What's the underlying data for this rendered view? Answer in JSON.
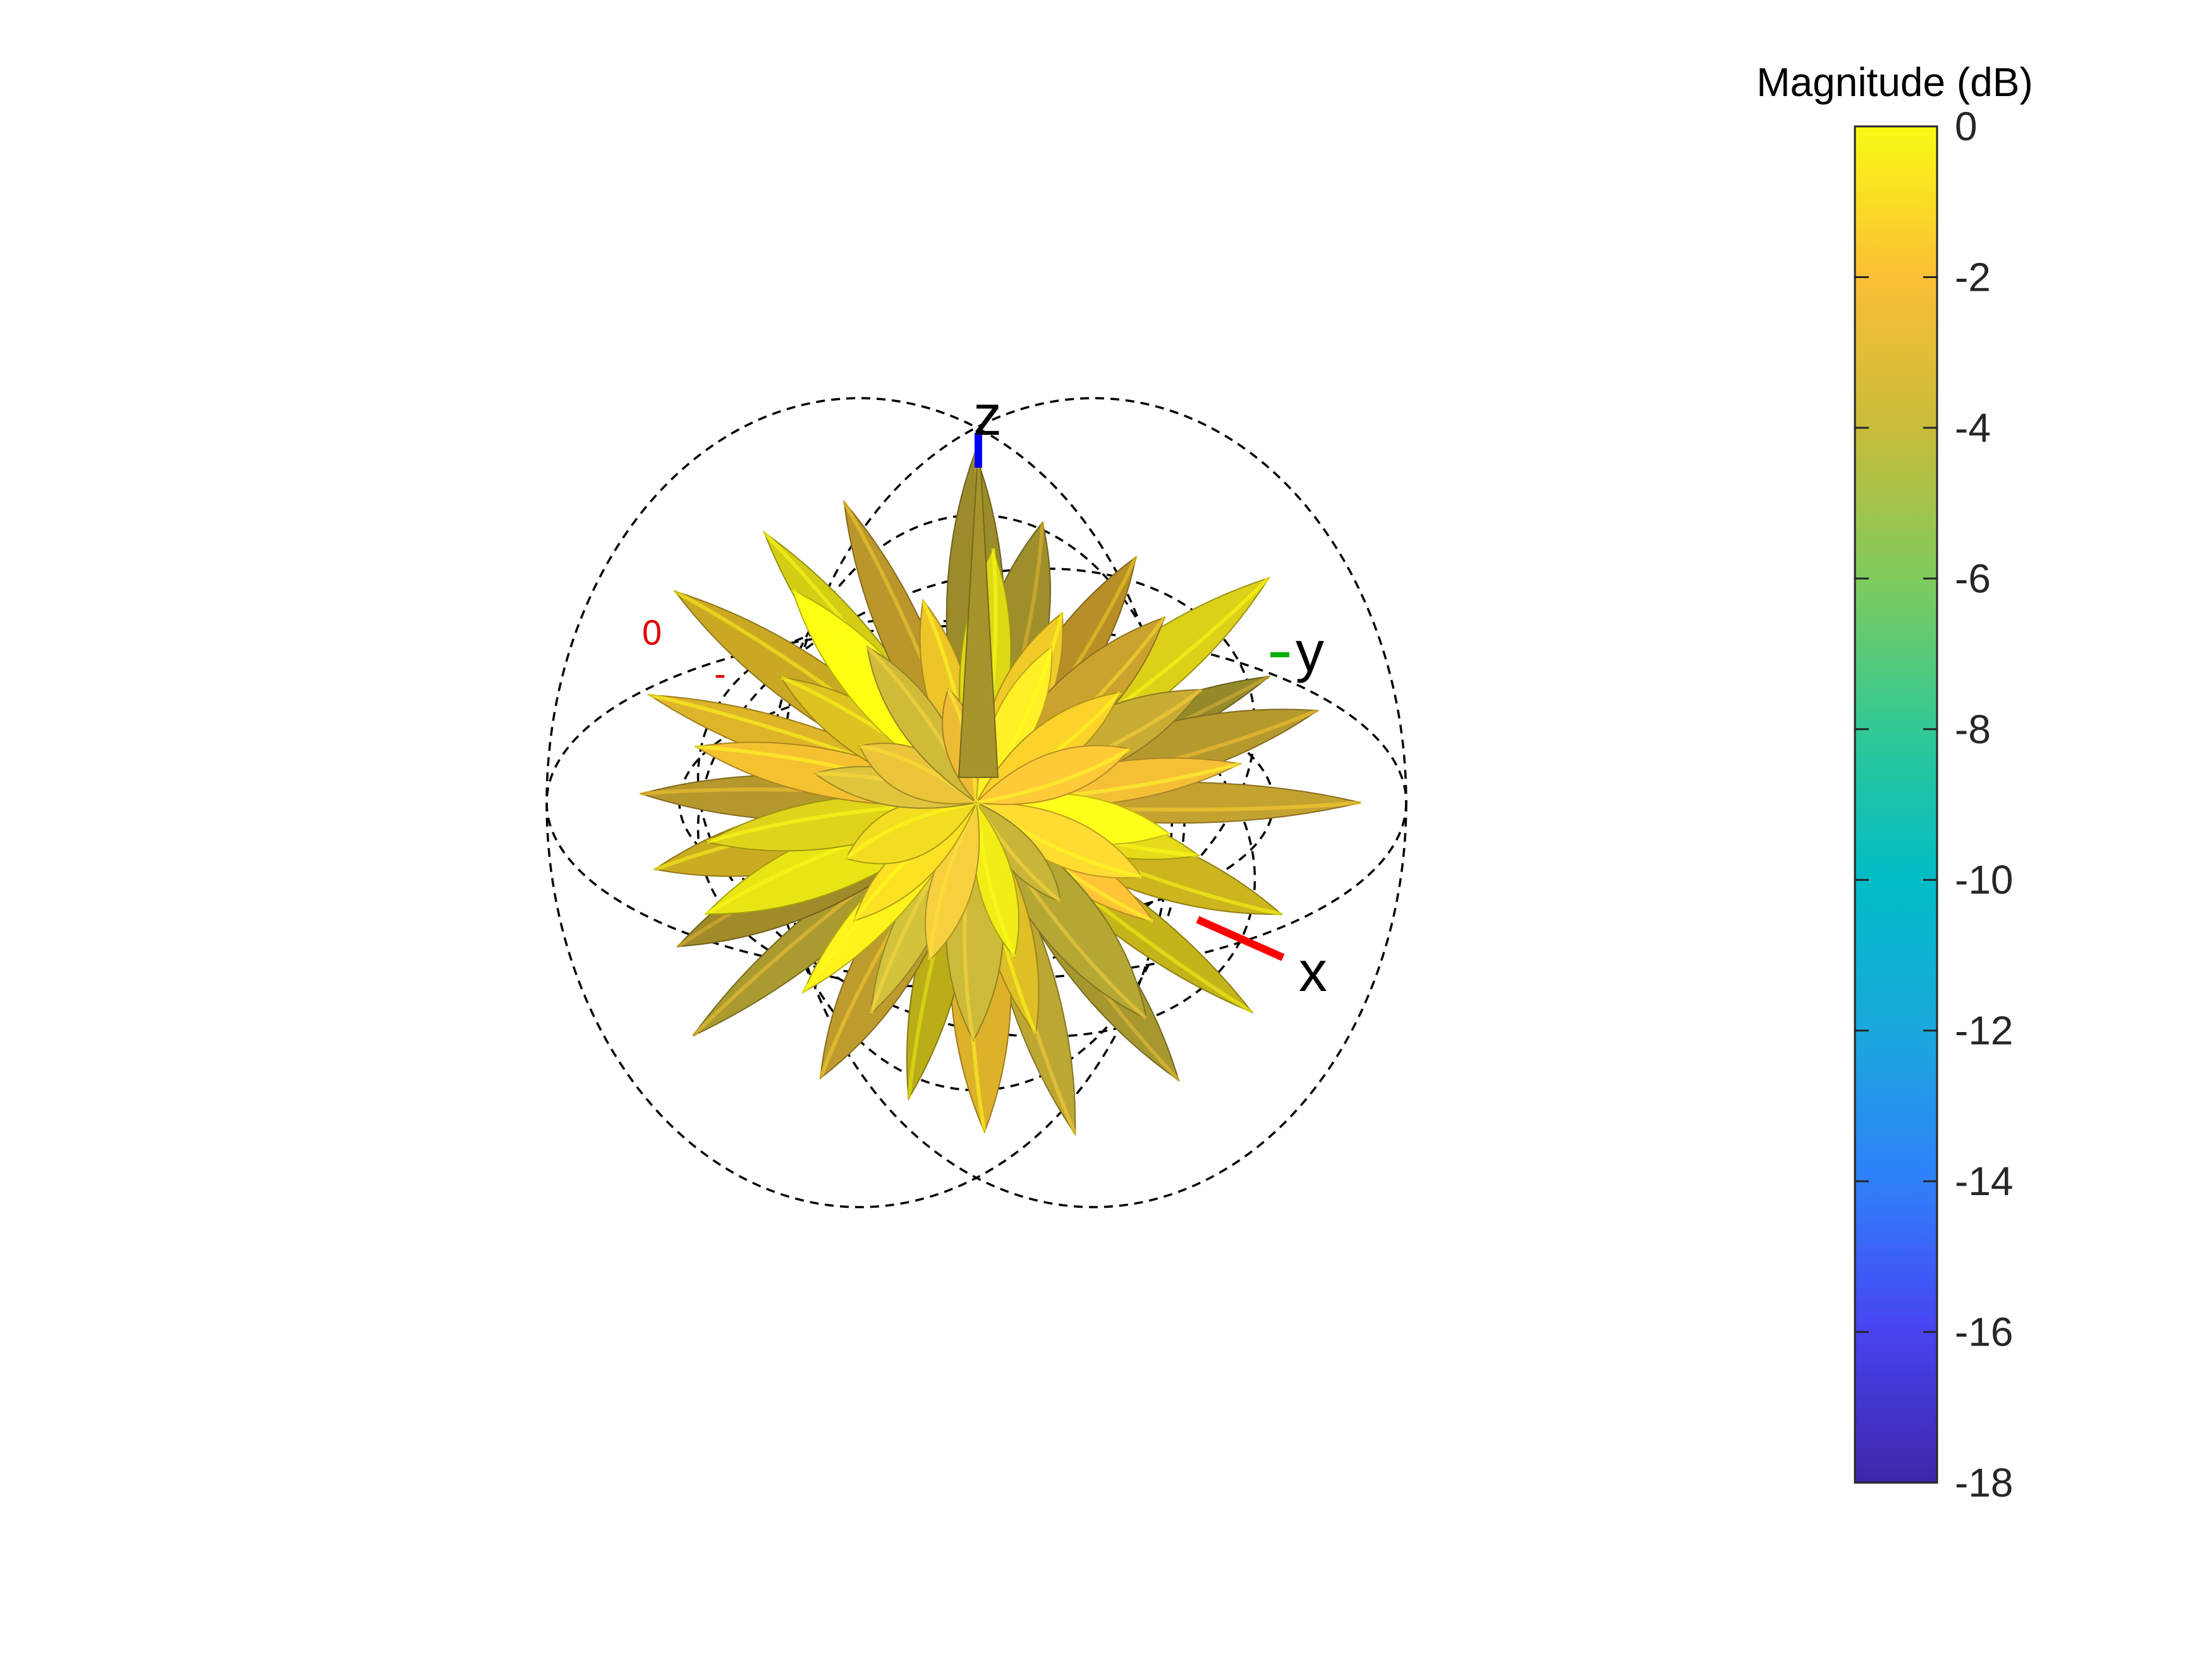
{
  "chart_data": {
    "type": "3d-radiation-pattern",
    "axes": {
      "x_label": "x",
      "y_label": "y",
      "z_label": "z"
    },
    "axis_colors": {
      "x": "#ff0000",
      "y": "#00b000",
      "z": "#0000ff"
    },
    "ring_labels": [
      "0",
      "-"
    ],
    "surface_color_range_db": [
      -4,
      0
    ],
    "colorbar": {
      "title": "Magnitude (dB)",
      "ticks": [
        "0",
        "-2",
        "-4",
        "-6",
        "-8",
        "-10",
        "-12",
        "-14",
        "-16",
        "-18"
      ],
      "tick_values": [
        0,
        -2,
        -4,
        -6,
        -8,
        -10,
        -12,
        -14,
        -16,
        -18
      ],
      "range": [
        -18,
        0
      ],
      "colormap": "parula",
      "colormap_stops": [
        "#3e26a8",
        "#4743f0",
        "#2f80fa",
        "#1aa8dc",
        "#00bcc6",
        "#30c994",
        "#7fcb5c",
        "#c9bc3a",
        "#fbbf35",
        "#f9fa14"
      ]
    },
    "legend_position": "right"
  }
}
